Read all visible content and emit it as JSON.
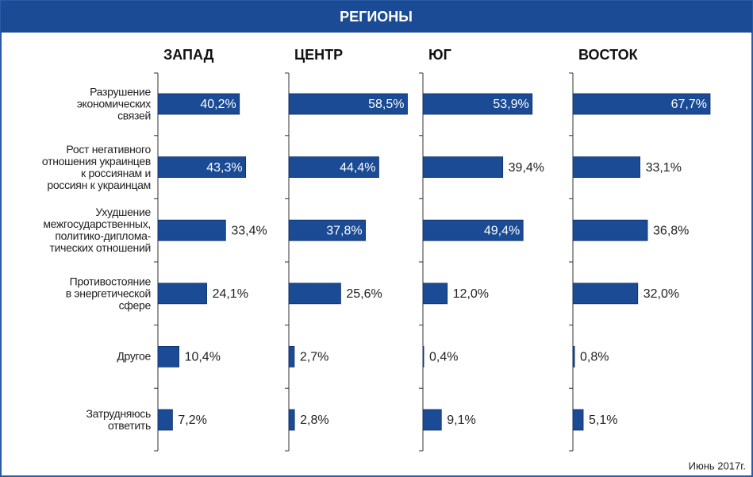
{
  "header": "РЕГИОНЫ",
  "note": "Июнь 2017г.",
  "categories": [
    "Разрушение\nэкономических\nсвязей",
    "Рост негативного\nотношения украинцев\nк россиянам и\nроссиян к украинцам",
    "Ухудшение\nмежгосударственных,\nполитико-диплома-\nтических отношений",
    "Противостояние\nв энергетической\nсфере",
    "Другое",
    "Затрудняюсь\nответить"
  ],
  "chart_data": [
    {
      "type": "barh",
      "title": "ЗАПАД",
      "values": [
        40.2,
        43.3,
        33.4,
        24.1,
        10.4,
        7.2
      ],
      "value_labels": [
        "40,2%",
        "43,3%",
        "33,4%",
        "24,1%",
        "10,4%",
        "7,2%"
      ],
      "color": "#1a4b94",
      "xlim": [
        0,
        70
      ]
    },
    {
      "type": "barh",
      "title": "ЦЕНТР",
      "values": [
        58.5,
        44.4,
        37.8,
        25.6,
        2.7,
        2.8
      ],
      "value_labels": [
        "58,5%",
        "44,4%",
        "37,8%",
        "25,6%",
        "2,7%",
        "2,8%"
      ],
      "color": "#1a4b94",
      "xlim": [
        0,
        70
      ]
    },
    {
      "type": "barh",
      "title": "ЮГ",
      "values": [
        53.9,
        39.4,
        49.4,
        12.0,
        0.4,
        9.1
      ],
      "value_labels": [
        "53,9%",
        "39,4%",
        "49,4%",
        "12,0%",
        "0,4%",
        "9,1%"
      ],
      "color": "#1a4b94",
      "xlim": [
        0,
        70
      ]
    },
    {
      "type": "barh",
      "title": "ВОСТОК",
      "values": [
        67.7,
        33.1,
        36.8,
        32.0,
        0.8,
        5.1
      ],
      "value_labels": [
        "67,7%",
        "33,1%",
        "36,8%",
        "32,0%",
        "0,8%",
        "5,1%"
      ],
      "color": "#1a4b94",
      "xlim": [
        0,
        70
      ]
    }
  ]
}
